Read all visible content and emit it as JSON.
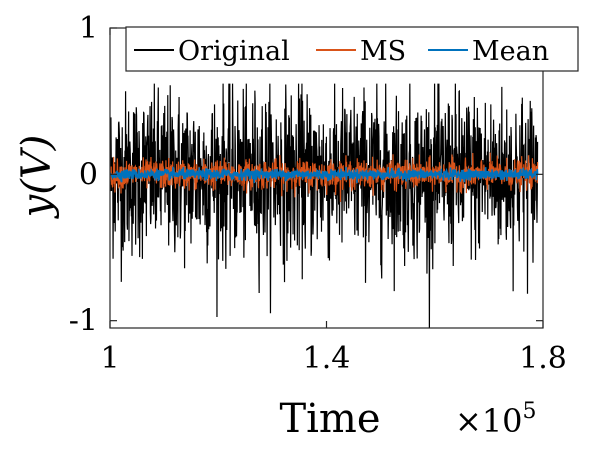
{
  "chart_data": {
    "type": "line",
    "title": "",
    "xlabel": "Time",
    "ylabel": "y(V)",
    "x_scale_note": "×10^5",
    "x_exponent_base": "×10",
    "x_exponent_power": "5",
    "xlim": [
      1.0,
      1.8
    ],
    "ylim": [
      -1.05,
      1.0
    ],
    "xticks": [
      1.0,
      1.4,
      1.8
    ],
    "xtick_labels": [
      "1",
      "1.4",
      "1.8"
    ],
    "yticks": [
      -1,
      0,
      1
    ],
    "ytick_labels": [
      "-1",
      "0",
      "1"
    ],
    "grid": false,
    "legend_position": "top-right",
    "legend_orientation": "horizontal",
    "series": [
      {
        "name": "Original",
        "color": "#000000",
        "x_start": 1.0,
        "x_end": 1.79,
        "approx_mean": 0.0,
        "approx_band": [
          -0.35,
          0.4
        ],
        "approx_peaks": [
          -1.1,
          0.62
        ],
        "description": "dense noise signal"
      },
      {
        "name": "MS",
        "color": "#D95319",
        "x_start": 1.0,
        "x_end": 1.79,
        "approx_mean": 0.0,
        "approx_band": [
          -0.1,
          0.1
        ],
        "approx_peaks": [
          -0.25,
          0.15
        ]
      },
      {
        "name": "Mean",
        "color": "#0072BD",
        "x_start": 1.0,
        "x_end": 1.79,
        "approx_mean": 0.0,
        "approx_band": [
          -0.04,
          0.04
        ],
        "approx_peaks": [
          -0.06,
          0.15
        ]
      }
    ]
  }
}
